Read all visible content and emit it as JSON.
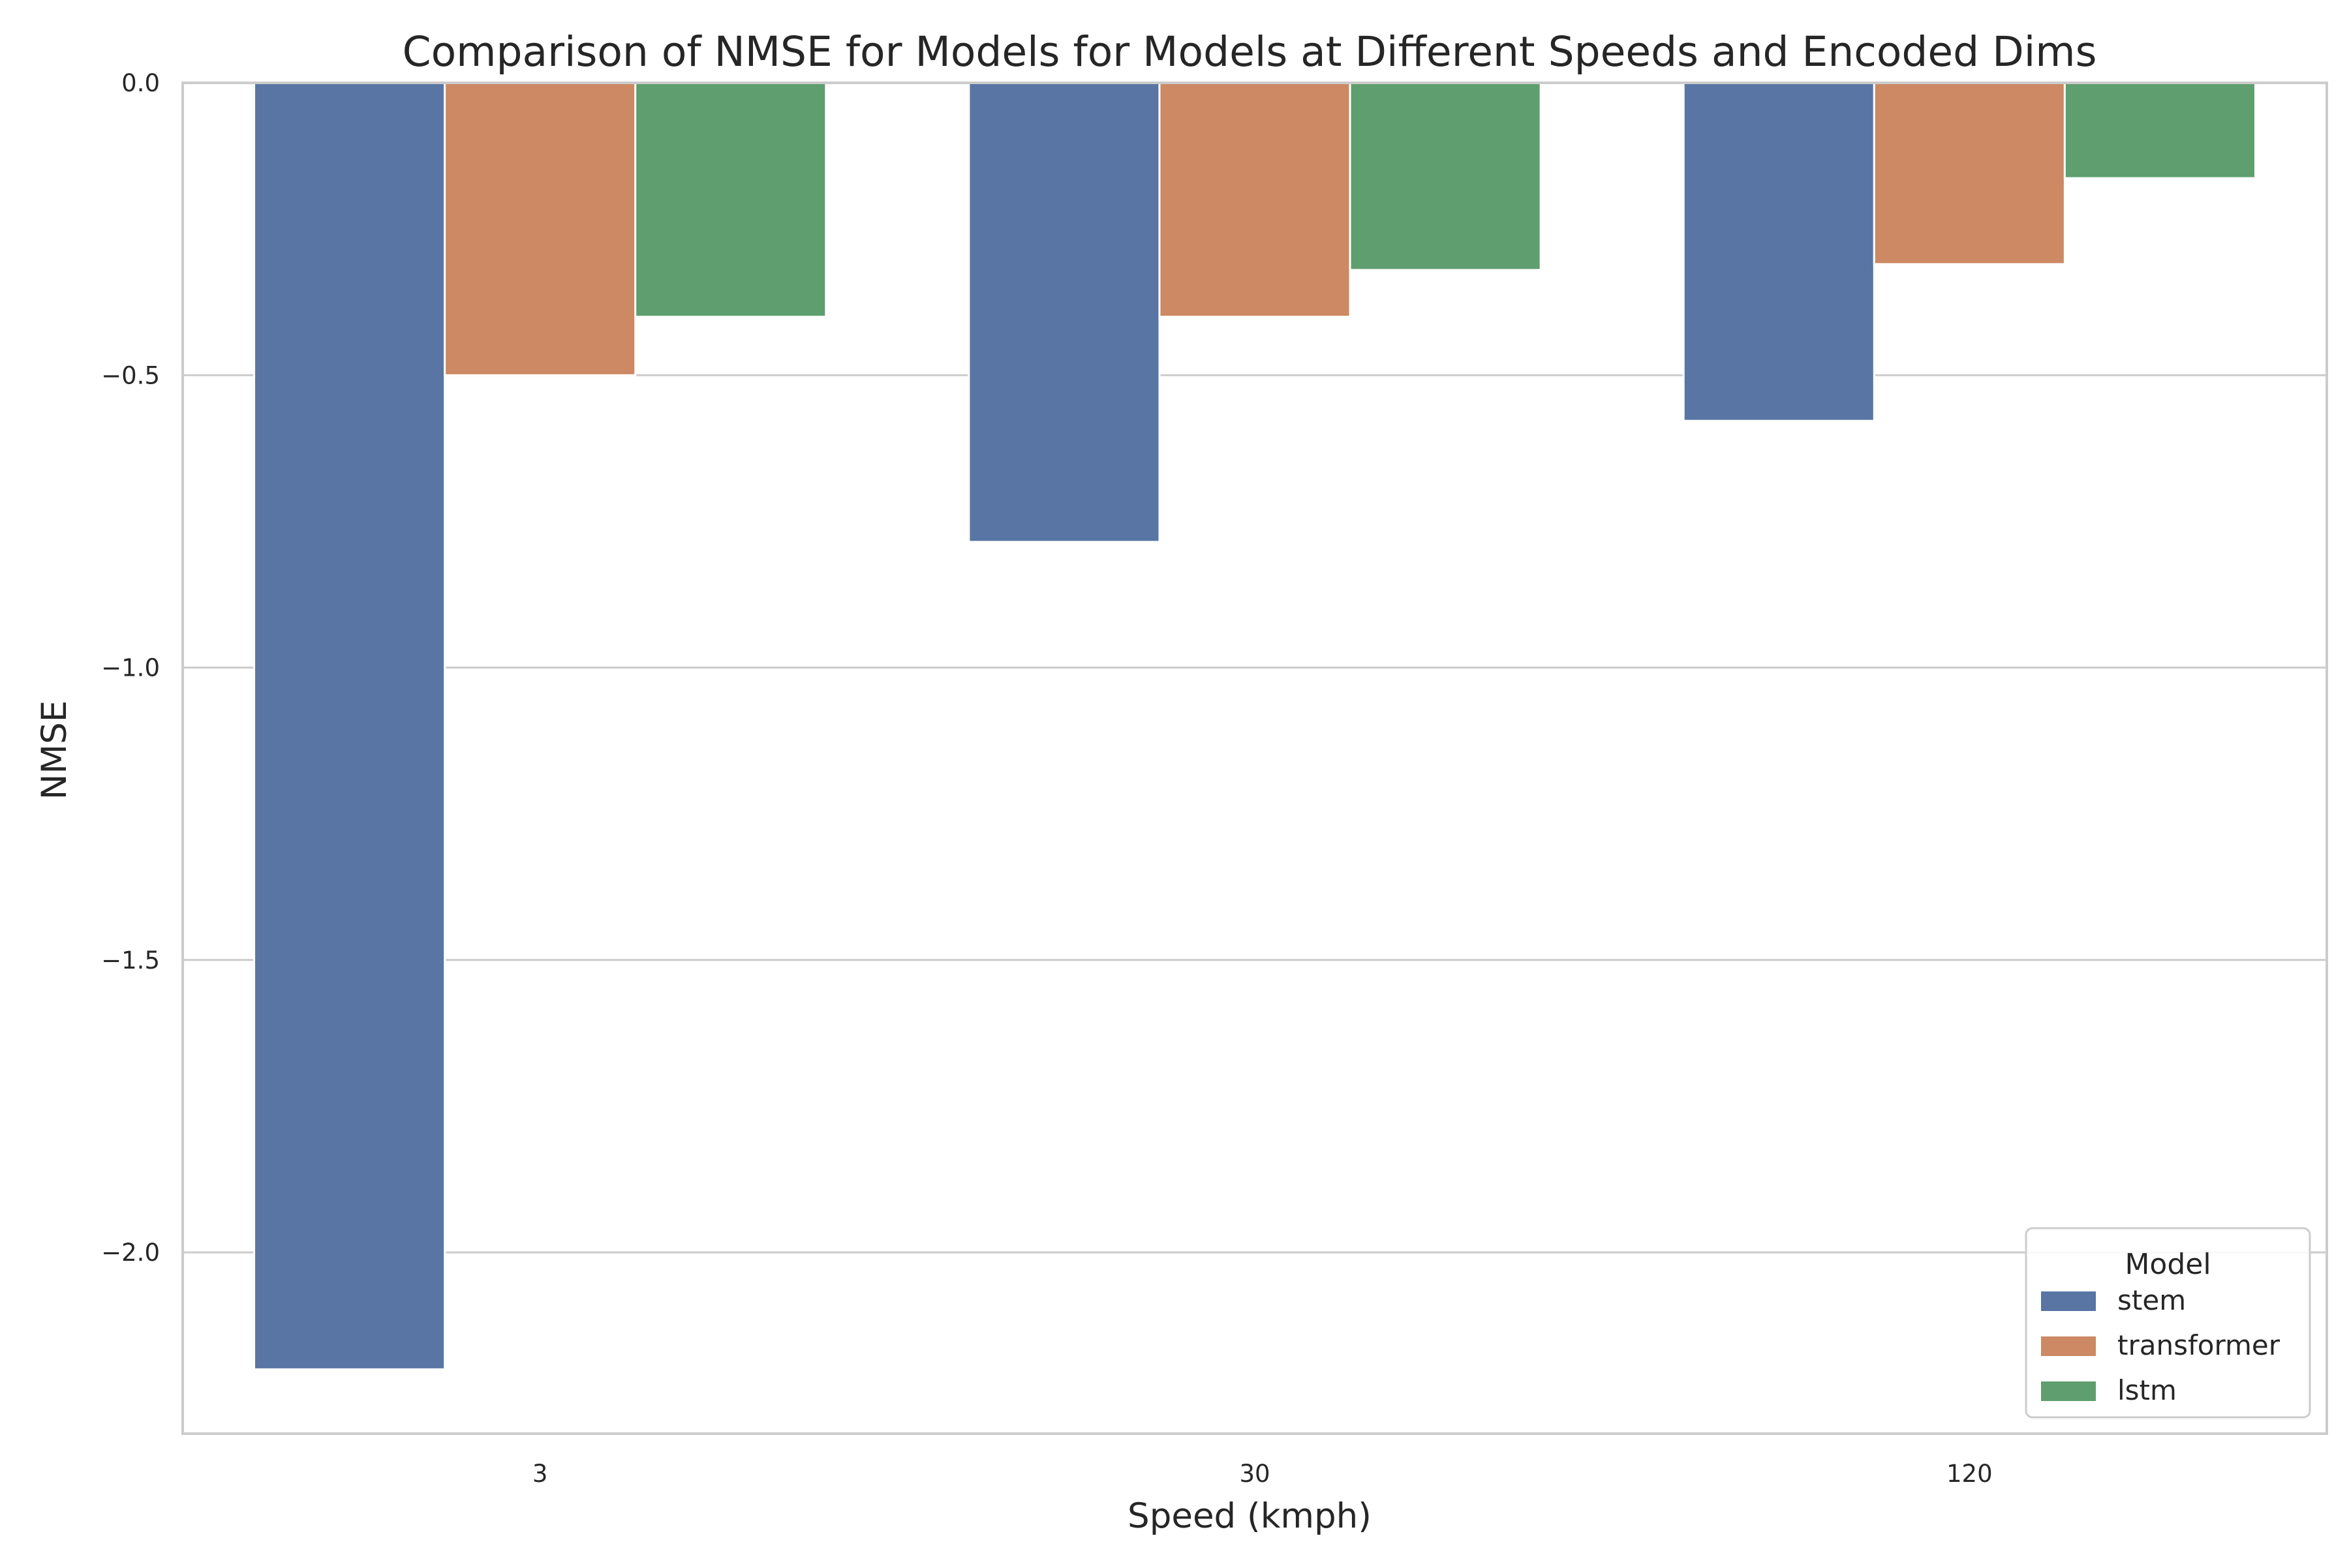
{
  "chart_data": {
    "type": "bar",
    "title": "Comparison of NMSE for Models for Models at Different Speeds and Encoded Dims",
    "xlabel": "Speed (kmph)",
    "ylabel": "NMSE",
    "categories": [
      "3",
      "30",
      "120"
    ],
    "series": [
      {
        "name": "stem",
        "values": [
          -2.2,
          -0.785,
          -0.578
        ],
        "color": "#5875a4"
      },
      {
        "name": "transformer",
        "values": [
          -0.5,
          -0.4,
          -0.31
        ],
        "color": "#cc8963"
      },
      {
        "name": "lstm",
        "values": [
          -0.4,
          -0.32,
          -0.163
        ],
        "color": "#5f9e6e"
      }
    ],
    "ylim": [
      -2.31,
      0.0
    ],
    "yticks": [
      0.0,
      -0.5,
      -1.0,
      -1.5,
      -2.0
    ],
    "ytick_labels": [
      "0.0",
      "−0.5",
      "−1.0",
      "−1.5",
      "−2.0"
    ],
    "grid": "horizontal",
    "legend": {
      "title": "Model",
      "placement": "lower-right"
    }
  }
}
